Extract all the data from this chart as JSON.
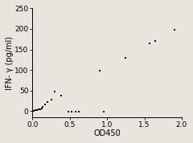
{
  "x": [
    0.02,
    0.04,
    0.06,
    0.08,
    0.1,
    0.12,
    0.14,
    0.17,
    0.2,
    0.25,
    0.3,
    0.38,
    0.48,
    0.52,
    0.58,
    0.62,
    0.9,
    0.95,
    1.25,
    1.57,
    1.65,
    1.9
  ],
  "y": [
    1,
    2,
    3,
    4,
    5,
    7,
    10,
    15,
    22,
    28,
    48,
    38,
    -2,
    -1,
    -2,
    -1,
    98,
    -2,
    130,
    165,
    170,
    198
  ],
  "xlabel": "OD450",
  "ylabel": "IFN- γ (pg/ml)",
  "xlim": [
    0.0,
    2.0
  ],
  "ylim": [
    -15,
    250
  ],
  "xticks": [
    0.0,
    0.5,
    1.0,
    1.5,
    2.0
  ],
  "yticks": [
    0,
    50,
    100,
    150,
    200,
    250
  ],
  "marker": "s",
  "marker_size": 4,
  "marker_color": "#111111",
  "background_color": "#e8e4de",
  "plot_bg_color": "#e8e4de",
  "axis_color": "#000000",
  "fontsize_label": 7,
  "fontsize_tick": 6.5
}
